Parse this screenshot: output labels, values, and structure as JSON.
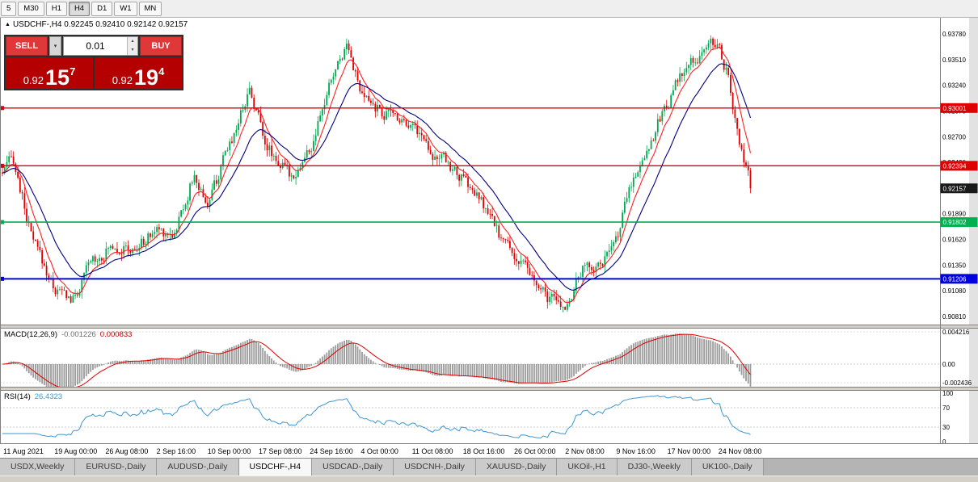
{
  "toolbar": {
    "timeframes": [
      {
        "label": "5",
        "active": false
      },
      {
        "label": "M30",
        "active": false
      },
      {
        "label": "H1",
        "active": false
      },
      {
        "label": "H4",
        "active": true
      },
      {
        "label": "D1",
        "active": false
      },
      {
        "label": "W1",
        "active": false
      },
      {
        "label": "MN",
        "active": false
      }
    ]
  },
  "icons": {
    "symbol_arrow": "▲",
    "dropdown": "▾",
    "spin_up": "▴",
    "spin_down": "▾"
  },
  "symbol_header": {
    "text": "USDCHF-,H4  0.92245 0.92410 0.92142 0.92157"
  },
  "trade_panel": {
    "sell_label": "SELL",
    "buy_label": "BUY",
    "volume": "0.01",
    "sell_price": {
      "prefix": "0.92",
      "big": "15",
      "sup": "7"
    },
    "buy_price": {
      "prefix": "0.92",
      "big": "19",
      "sup": "4"
    }
  },
  "indicators": {
    "macd": {
      "label": "MACD(12,26,9)",
      "value1": "-0.001226",
      "value2": "0.000833"
    },
    "rsi": {
      "label": "RSI(14)",
      "value": "26.4323"
    }
  },
  "tabs": {
    "active_index": 3,
    "items": [
      "USDX,Weekly",
      "EURUSD-,Daily",
      "AUDUSD-,Daily",
      "USDCHF-,H4",
      "USDCAD-,Daily",
      "USDCNH-,Daily",
      "XAUUSD-,Daily",
      "UKOil-,H1",
      "DJ30-,Weekly",
      "UK100-,Daily"
    ]
  },
  "chart_data": {
    "type": "candlestick",
    "symbol": "USDCHF-",
    "timeframe": "H4",
    "ohlc_header": {
      "open": 0.92245,
      "high": 0.9241,
      "low": 0.92142,
      "close": 0.92157
    },
    "candle_colors": {
      "up": "#00a651",
      "down": "#e00000"
    },
    "y_axis": {
      "min": 0.9081,
      "max": 0.9378,
      "tick_step": 0.0027,
      "ticks": [
        "0.93780",
        "0.93510",
        "0.93240",
        "0.92970",
        "0.92700",
        "0.92430",
        "0.92160",
        "0.91890",
        "0.91620",
        "0.91350",
        "0.91080",
        "0.90810"
      ]
    },
    "x_axis_labels": [
      "11 Aug 2021",
      "19 Aug 00:00",
      "26 Aug 08:00",
      "2 Sep 16:00",
      "10 Sep 00:00",
      "17 Sep 08:00",
      "24 Sep 16:00",
      "4 Oct 00:00",
      "11 Oct 08:00",
      "18 Oct 16:00",
      "26 Oct 00:00",
      "2 Nov 08:00",
      "9 Nov 16:00",
      "17 Nov 00:00",
      "24 Nov 08:00"
    ],
    "levels": [
      {
        "price": 0.93001,
        "label": "0.93001",
        "color": "#dd0000",
        "line": true,
        "width": 1.4,
        "kind": "resistance-line"
      },
      {
        "price": 0.92394,
        "label": "0.92394",
        "color": "#dd0000",
        "line": true,
        "width": 1.4,
        "kind": "resistance-line"
      },
      {
        "price": 0.92157,
        "label": "0.92157",
        "color": "#1a1a1a",
        "line": false,
        "width": 1,
        "kind": "current-price"
      },
      {
        "price": 0.91802,
        "label": "0.91802",
        "color": "#00b050",
        "line": true,
        "width": 1.6,
        "kind": "support-line"
      },
      {
        "price": 0.91206,
        "label": "0.91206",
        "color": "#0000dd",
        "line": true,
        "width": 2,
        "kind": "support-line"
      }
    ],
    "moving_averages": [
      {
        "period": 8,
        "color": "#ff2020"
      },
      {
        "period": 21,
        "color": "#000080"
      }
    ],
    "price_path": [
      [
        0.0,
        0.9232
      ],
      [
        0.015,
        0.9245
      ],
      [
        0.04,
        0.916
      ],
      [
        0.07,
        0.911
      ],
      [
        0.095,
        0.9098
      ],
      [
        0.12,
        0.914
      ],
      [
        0.15,
        0.9158
      ],
      [
        0.175,
        0.9148
      ],
      [
        0.205,
        0.9172
      ],
      [
        0.23,
        0.917
      ],
      [
        0.255,
        0.9228
      ],
      [
        0.275,
        0.92
      ],
      [
        0.3,
        0.9252
      ],
      [
        0.33,
        0.9322
      ],
      [
        0.355,
        0.926
      ],
      [
        0.385,
        0.9228
      ],
      [
        0.415,
        0.926
      ],
      [
        0.44,
        0.933
      ],
      [
        0.462,
        0.9372
      ],
      [
        0.48,
        0.931
      ],
      [
        0.51,
        0.9295
      ],
      [
        0.545,
        0.9288
      ],
      [
        0.575,
        0.9255
      ],
      [
        0.61,
        0.923
      ],
      [
        0.64,
        0.92
      ],
      [
        0.665,
        0.9165
      ],
      [
        0.69,
        0.914
      ],
      [
        0.72,
        0.9105
      ],
      [
        0.75,
        0.9088
      ],
      [
        0.775,
        0.913
      ],
      [
        0.8,
        0.9138
      ],
      [
        0.817,
        0.915
      ],
      [
        0.84,
        0.922
      ],
      [
        0.86,
        0.9255
      ],
      [
        0.885,
        0.93
      ],
      [
        0.905,
        0.933
      ],
      [
        0.93,
        0.9355
      ],
      [
        0.953,
        0.9372
      ],
      [
        0.968,
        0.934
      ],
      [
        0.985,
        0.926
      ],
      [
        1.0,
        0.92157
      ]
    ],
    "last_close": 0.92157,
    "macd_panel": {
      "fast": 12,
      "slow": 26,
      "signal": 9,
      "axis_max": 0.004216,
      "axis_min": -0.002436,
      "axis": [
        "0.004216",
        "0.00",
        "-0.002436"
      ],
      "histogram_color": "#9a9a9a",
      "signal_color": "#dd0000",
      "current_macd": -0.001226,
      "current_signal": 0.000833
    },
    "rsi_panel": {
      "period": 14,
      "color": "#3d96d2",
      "axis": [
        "100",
        "70",
        "30",
        "0"
      ],
      "guide_levels": [
        70,
        30
      ],
      "current": 26.4323
    }
  }
}
